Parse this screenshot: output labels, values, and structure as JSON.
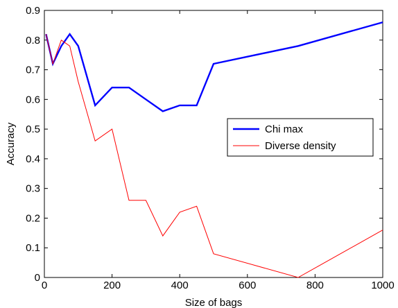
{
  "chart_data": {
    "type": "line",
    "xlabel": "Size of bags",
    "ylabel": "Accuracy",
    "xlim": [
      0,
      1000
    ],
    "ylim": [
      0,
      0.9
    ],
    "xticks": [
      0,
      200,
      400,
      600,
      800,
      1000
    ],
    "xtick_labels": [
      "0",
      "200",
      "400",
      "600",
      "800",
      "1000"
    ],
    "yticks": [
      0,
      0.1,
      0.2,
      0.3,
      0.4,
      0.5,
      0.6,
      0.7,
      0.8,
      0.9
    ],
    "ytick_labels": [
      "0",
      "0.1",
      "0.2",
      "0.3",
      "0.4",
      "0.5",
      "0.6",
      "0.7",
      "0.8",
      "0.9"
    ],
    "grid": false,
    "legend_position": "right-center",
    "series": [
      {
        "name": "Chi max",
        "color": "#0000ff",
        "x": [
          5,
          25,
          50,
          75,
          100,
          150,
          200,
          250,
          300,
          350,
          400,
          450,
          500,
          750,
          1000
        ],
        "y": [
          0.82,
          0.72,
          0.78,
          0.82,
          0.78,
          0.58,
          0.64,
          0.64,
          0.6,
          0.56,
          0.58,
          0.58,
          0.72,
          0.78,
          0.86
        ]
      },
      {
        "name": "Diverse density",
        "color": "#ff0000",
        "x": [
          5,
          25,
          50,
          75,
          100,
          150,
          200,
          250,
          300,
          350,
          400,
          450,
          500,
          750,
          1000
        ],
        "y": [
          0.82,
          0.72,
          0.8,
          0.78,
          0.66,
          0.46,
          0.5,
          0.26,
          0.26,
          0.14,
          0.22,
          0.24,
          0.08,
          0.0,
          0.16
        ]
      }
    ]
  }
}
